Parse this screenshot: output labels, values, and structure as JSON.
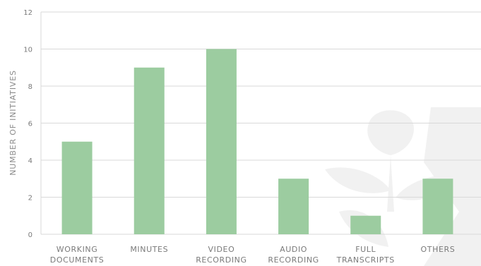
{
  "chart_data": {
    "type": "bar",
    "ylabel": "NUMBER OF INITIATIVES",
    "ylim": [
      0,
      12
    ],
    "yticks": [
      0,
      2,
      4,
      6,
      8,
      10,
      12
    ],
    "grid": true,
    "categories": [
      [
        "WORKING",
        "DOCUMENTS"
      ],
      [
        "MINUTES"
      ],
      [
        "VIDEO",
        "RECORDING"
      ],
      [
        "AUDIO",
        "RECORDING"
      ],
      [
        "FULL",
        "TRANSCRIPTS"
      ],
      [
        "OTHERS"
      ]
    ],
    "values": [
      5,
      9,
      10,
      3,
      1,
      3
    ],
    "colors": {
      "bar": "#9ccca0",
      "grid": "#d9d9d9",
      "text": "#7a7a7a",
      "watermark": "#f1f1f1"
    }
  }
}
